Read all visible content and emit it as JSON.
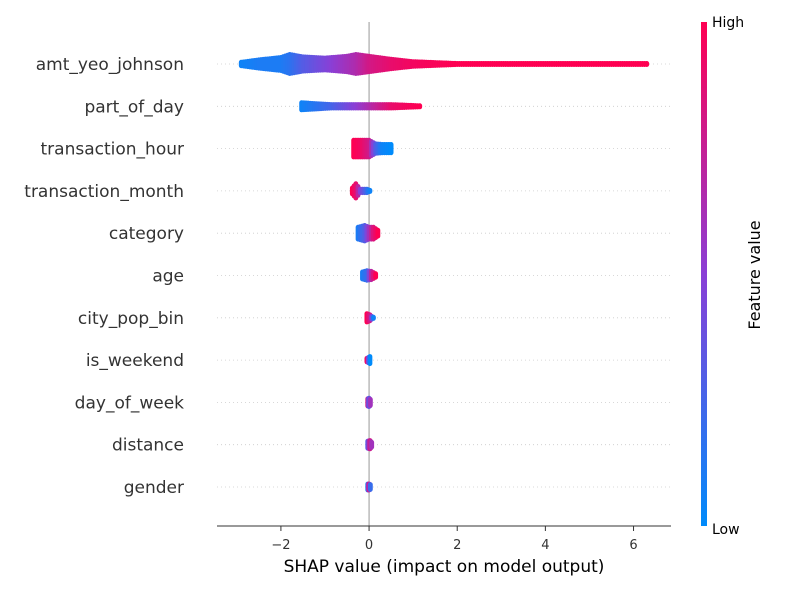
{
  "chart_data": {
    "type": "scatter",
    "subtype": "shap-beeswarm",
    "title": "",
    "xlabel": "SHAP value (impact on model output)",
    "ylabel": "",
    "xlim": [
      -3.45,
      6.85
    ],
    "xticks": [
      -2,
      0,
      2,
      4,
      6
    ],
    "xtick_labels": [
      "−2",
      "0",
      "2",
      "4",
      "6"
    ],
    "zero_line": 0,
    "row_grid": "dotted",
    "colors": {
      "low": "#008bfb",
      "high": "#ff0052"
    },
    "colorbar": {
      "title": "Feature value",
      "high_label": "High",
      "low_label": "Low",
      "placement": "right"
    },
    "features": [
      {
        "name": "amt_yeo_johnson",
        "shap_min": -2.98,
        "shap_max": 6.38,
        "points": [
          {
            "x": -2.9,
            "v": 0.05,
            "w": 0.35
          },
          {
            "x": -2.5,
            "v": 0.1,
            "w": 0.55
          },
          {
            "x": -2.0,
            "v": 0.1,
            "w": 0.75
          },
          {
            "x": -1.8,
            "v": 0.15,
            "w": 1.0
          },
          {
            "x": -1.5,
            "v": 0.3,
            "w": 0.8
          },
          {
            "x": -1.0,
            "v": 0.45,
            "w": 0.7
          },
          {
            "x": -0.5,
            "v": 0.6,
            "w": 0.85
          },
          {
            "x": -0.3,
            "v": 0.65,
            "w": 1.0
          },
          {
            "x": 0.0,
            "v": 0.8,
            "w": 0.85
          },
          {
            "x": 0.5,
            "v": 0.9,
            "w": 0.6
          },
          {
            "x": 1.0,
            "v": 0.95,
            "w": 0.4
          },
          {
            "x": 2.0,
            "v": 1.0,
            "w": 0.25
          },
          {
            "x": 3.0,
            "v": 1.0,
            "w": 0.15
          },
          {
            "x": 4.5,
            "v": 1.0,
            "w": 0.1
          },
          {
            "x": 5.2,
            "v": 1.0,
            "w": 0.05
          },
          {
            "x": 5.5,
            "v": 1.0,
            "w": 0.03
          },
          {
            "x": 5.7,
            "v": 1.0,
            "w": 0.03
          },
          {
            "x": 5.9,
            "v": 1.0,
            "w": 0.03
          },
          {
            "x": 6.1,
            "v": 1.0,
            "w": 0.03
          },
          {
            "x": 6.3,
            "v": 1.0,
            "w": 0.03
          }
        ]
      },
      {
        "name": "part_of_day",
        "shap_min": -1.55,
        "shap_max": 1.18,
        "points": [
          {
            "x": -1.53,
            "v": 0.05,
            "w": 0.5
          },
          {
            "x": -0.85,
            "v": 0.25,
            "w": 0.35
          },
          {
            "x": -0.2,
            "v": 0.55,
            "w": 0.35
          },
          {
            "x": 0.5,
            "v": 0.9,
            "w": 0.35
          },
          {
            "x": 1.15,
            "v": 1.0,
            "w": 0.25
          }
        ]
      },
      {
        "name": "transaction_hour",
        "shap_min": -0.4,
        "shap_max": 0.55,
        "points": [
          {
            "x": -0.35,
            "v": 1.0,
            "w": 0.9
          },
          {
            "x": -0.2,
            "v": 0.95,
            "w": 0.9
          },
          {
            "x": 0.0,
            "v": 0.8,
            "w": 0.9
          },
          {
            "x": 0.15,
            "v": 0.3,
            "w": 0.6
          },
          {
            "x": 0.3,
            "v": 0.05,
            "w": 0.55
          },
          {
            "x": 0.5,
            "v": 0.0,
            "w": 0.55
          }
        ]
      },
      {
        "name": "transaction_month",
        "shap_min": -0.4,
        "shap_max": 0.05,
        "points": [
          {
            "x": -0.38,
            "v": 1.0,
            "w": 0.45
          },
          {
            "x": -0.3,
            "v": 0.9,
            "w": 0.8
          },
          {
            "x": -0.2,
            "v": 0.5,
            "w": 0.35
          },
          {
            "x": -0.05,
            "v": 0.2,
            "w": 0.35
          },
          {
            "x": 0.02,
            "v": 0.05,
            "w": 0.25
          }
        ]
      },
      {
        "name": "category",
        "shap_min": -0.28,
        "shap_max": 0.22,
        "points": [
          {
            "x": -0.25,
            "v": 0.1,
            "w": 0.7
          },
          {
            "x": -0.1,
            "v": 0.3,
            "w": 0.85
          },
          {
            "x": 0.0,
            "v": 0.6,
            "w": 0.7
          },
          {
            "x": 0.1,
            "v": 0.85,
            "w": 0.7
          },
          {
            "x": 0.2,
            "v": 1.0,
            "w": 0.45
          }
        ]
      },
      {
        "name": "age",
        "shap_min": -0.18,
        "shap_max": 0.18,
        "points": [
          {
            "x": -0.15,
            "v": 0.1,
            "w": 0.5
          },
          {
            "x": -0.05,
            "v": 0.2,
            "w": 0.6
          },
          {
            "x": 0.05,
            "v": 0.7,
            "w": 0.55
          },
          {
            "x": 0.15,
            "v": 1.0,
            "w": 0.35
          }
        ]
      },
      {
        "name": "city_pop_bin",
        "shap_min": -0.08,
        "shap_max": 0.12,
        "points": [
          {
            "x": -0.05,
            "v": 1.0,
            "w": 0.55
          },
          {
            "x": 0.02,
            "v": 0.8,
            "w": 0.45
          },
          {
            "x": 0.1,
            "v": 0.05,
            "w": 0.2
          }
        ]
      },
      {
        "name": "is_weekend",
        "shap_min": -0.08,
        "shap_max": 0.05,
        "points": [
          {
            "x": -0.05,
            "v": 0.9,
            "w": 0.35
          },
          {
            "x": 0.02,
            "v": 0.0,
            "w": 0.5
          }
        ]
      },
      {
        "name": "day_of_week",
        "shap_min": -0.05,
        "shap_max": 0.05,
        "points": [
          {
            "x": -0.03,
            "v": 0.8,
            "w": 0.5
          },
          {
            "x": 0.0,
            "v": 0.3,
            "w": 0.55
          },
          {
            "x": 0.03,
            "v": 0.6,
            "w": 0.45
          }
        ]
      },
      {
        "name": "distance",
        "shap_min": -0.05,
        "shap_max": 0.08,
        "points": [
          {
            "x": -0.03,
            "v": 0.3,
            "w": 0.5
          },
          {
            "x": 0.02,
            "v": 0.8,
            "w": 0.55
          },
          {
            "x": 0.06,
            "v": 0.6,
            "w": 0.4
          }
        ]
      },
      {
        "name": "gender",
        "shap_min": -0.05,
        "shap_max": 0.05,
        "points": [
          {
            "x": -0.03,
            "v": 0.1,
            "w": 0.45
          },
          {
            "x": 0.0,
            "v": 0.9,
            "w": 0.45
          },
          {
            "x": 0.03,
            "v": 0.2,
            "w": 0.4
          }
        ]
      }
    ]
  }
}
